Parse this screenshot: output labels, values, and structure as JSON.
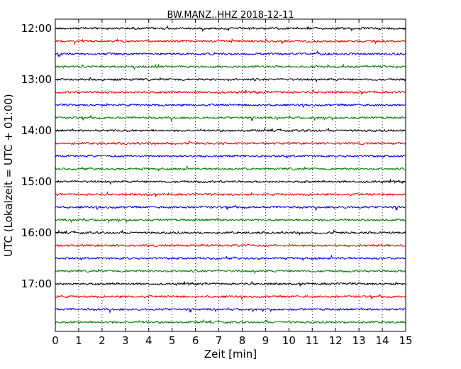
{
  "chart_data": {
    "type": "line",
    "title": "BW.MANZ..HHZ 2018-12-11",
    "xlabel": "Zeit  [min]",
    "ylabel": "UTC (Lokalzeit = UTC + 01:00)",
    "xlim": [
      0,
      15
    ],
    "x_ticks": [
      "0",
      "1",
      "2",
      "3",
      "4",
      "5",
      "6",
      "7",
      "8",
      "9",
      "10",
      "11",
      "12",
      "13",
      "14",
      "15"
    ],
    "y_ticks": [
      "12:00",
      "13:00",
      "14:00",
      "15:00",
      "16:00",
      "17:00"
    ],
    "grid": "vertical dotted lines at each minute",
    "traces_per_hour": 4,
    "trace_minutes": 15,
    "trace_start_times": [
      "12:00",
      "12:15",
      "12:30",
      "12:45",
      "13:00",
      "13:15",
      "13:30",
      "13:45",
      "14:00",
      "14:15",
      "14:30",
      "14:45",
      "15:00",
      "15:15",
      "15:30",
      "15:45",
      "16:00",
      "16:15",
      "16:30",
      "16:45",
      "17:00",
      "17:15",
      "17:30",
      "17:45"
    ],
    "trace_colors": [
      "#000000",
      "#ff0000",
      "#0000ff",
      "#008000"
    ]
  }
}
